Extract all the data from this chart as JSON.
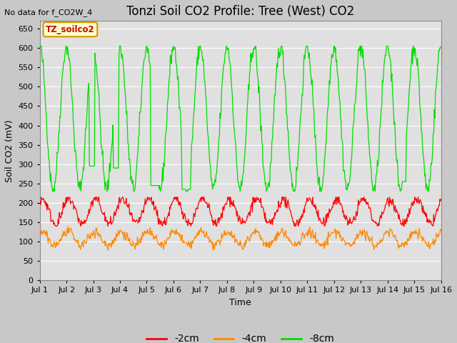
{
  "title": "Tonzi Soil CO2 Profile: Tree (West) CO2",
  "top_left_note": "No data for f_CO2W_4",
  "ylabel": "Soil CO2 (mV)",
  "xlabel": "Time",
  "ylim": [
    0,
    670
  ],
  "yticks": [
    0,
    50,
    100,
    150,
    200,
    250,
    300,
    350,
    400,
    450,
    500,
    550,
    600,
    650
  ],
  "xlim": [
    0,
    15
  ],
  "xtick_labels": [
    "Jul 1",
    "Jul 2",
    "Jul 3",
    "Jul 4",
    "Jul 5",
    "Jul 6",
    "Jul 7",
    "Jul 8",
    "Jul 9",
    "Jul 10",
    "Jul 11",
    "Jul 12",
    "Jul 13",
    "Jul 14",
    "Jul 15",
    "Jul 16"
  ],
  "legend_box_label": "TZ_soilco2",
  "legend_box_color": "#ffffcc",
  "legend_box_edge": "#cc9900",
  "series_colors": {
    "2cm": "#ff0000",
    "4cm": "#ff8800",
    "8cm": "#00dd00"
  },
  "legend_labels": [
    "-2cm",
    "-4cm",
    "-8cm"
  ],
  "fig_bg_color": "#c8c8c8",
  "plot_bg_color": "#e0e0e0",
  "grid_color": "#ffffff",
  "title_fontsize": 12,
  "label_fontsize": 9,
  "tick_fontsize": 8
}
